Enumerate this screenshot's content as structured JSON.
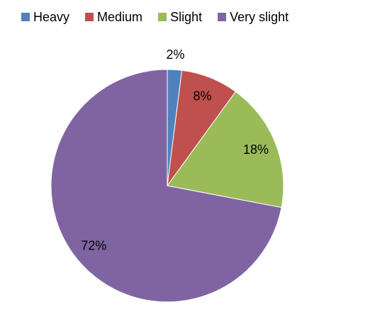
{
  "chart_data": {
    "type": "pie",
    "categories": [
      "Heavy",
      "Medium",
      "Slight",
      "Very slight"
    ],
    "values": [
      2,
      8,
      18,
      72
    ],
    "value_labels": [
      "2%",
      "8%",
      "18%",
      "72%"
    ],
    "colors": [
      "#4f81bd",
      "#c0504d",
      "#9bbb59",
      "#8064a2"
    ],
    "legend": "top"
  }
}
